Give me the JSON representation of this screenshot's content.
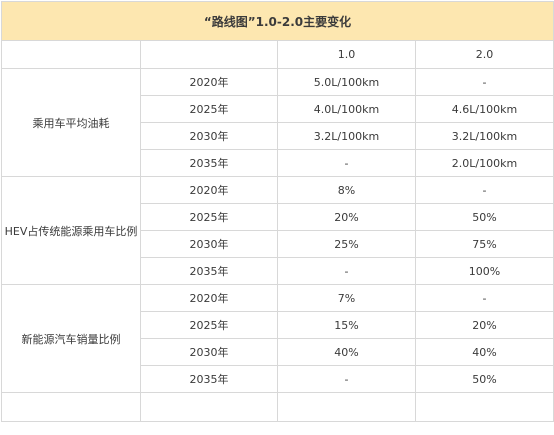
{
  "title": "“路线图”1.0-2.0主要变化",
  "columns": [
    "",
    "",
    "1.0",
    "2.0"
  ],
  "groups": [
    {
      "label": "乘用车平均油耗",
      "rows": [
        {
          "year": "2020年",
          "v1": "5.0L/100km",
          "v2": "-"
        },
        {
          "year": "2025年",
          "v1": "4.0L/100km",
          "v2": "4.6L/100km"
        },
        {
          "year": "2030年",
          "v1": "3.2L/100km",
          "v2": "3.2L/100km"
        },
        {
          "year": "2035年",
          "v1": "-",
          "v2": "2.0L/100km"
        }
      ]
    },
    {
      "label": "HEV占传统能源乘用车比例",
      "rows": [
        {
          "year": "2020年",
          "v1": "8%",
          "v2": "-"
        },
        {
          "year": "2025年",
          "v1": "20%",
          "v2": "50%"
        },
        {
          "year": "2030年",
          "v1": "25%",
          "v2": "75%"
        },
        {
          "year": "2035年",
          "v1": "-",
          "v2": "100%"
        }
      ]
    },
    {
      "label": "新能源汽车销量比例",
      "rows": [
        {
          "year": "2020年",
          "v1": "7%",
          "v2": "-"
        },
        {
          "year": "2025年",
          "v1": "15%",
          "v2": "20%"
        },
        {
          "year": "2030年",
          "v1": "40%",
          "v2": "40%"
        },
        {
          "year": "2035年",
          "v1": "-",
          "v2": "50%"
        }
      ]
    }
  ],
  "colors": {
    "title_background": "#fde7b0",
    "border": "#d8d8d8",
    "text": "#3a3a3a"
  }
}
